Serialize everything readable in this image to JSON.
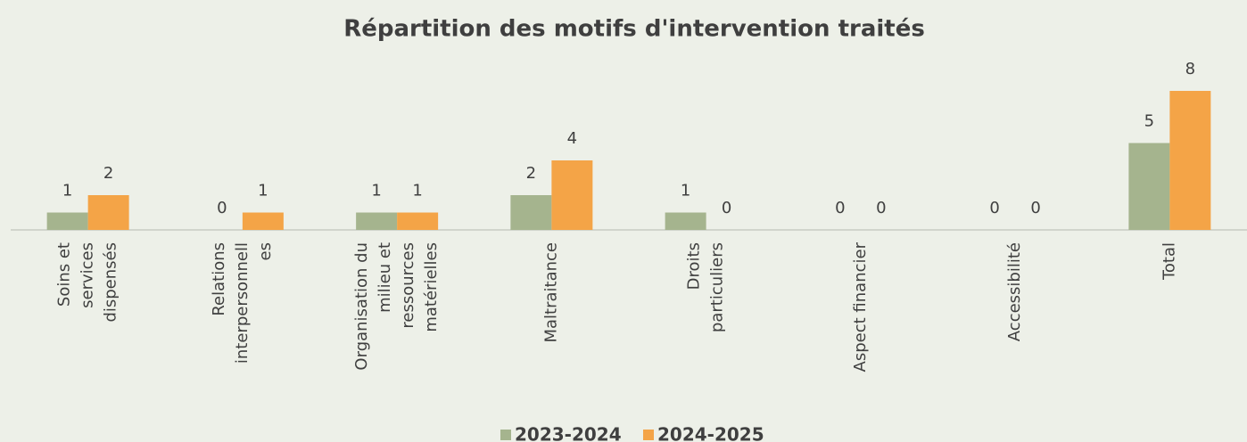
{
  "chart_data": {
    "type": "bar",
    "title": "Répartition des motifs d'intervention traités",
    "categories": [
      [
        "Soins et",
        "services",
        "dispensés"
      ],
      [
        "Relations",
        "interpersonnell",
        "es"
      ],
      [
        "Organisation du",
        "milieu et",
        "ressources",
        "matérielles"
      ],
      [
        "Maltraitance"
      ],
      [
        "Droits",
        "particuliers"
      ],
      [
        "Aspect financier"
      ],
      [
        "Accessibilité"
      ],
      [
        "Total"
      ]
    ],
    "series": [
      {
        "name": "2023-2024",
        "color": "#a5b48e",
        "values": [
          1,
          0,
          1,
          2,
          1,
          0,
          0,
          5
        ]
      },
      {
        "name": "2024-2025",
        "color": "#f4a447",
        "values": [
          2,
          1,
          1,
          4,
          0,
          0,
          0,
          8
        ]
      }
    ],
    "legend": "bottom"
  }
}
